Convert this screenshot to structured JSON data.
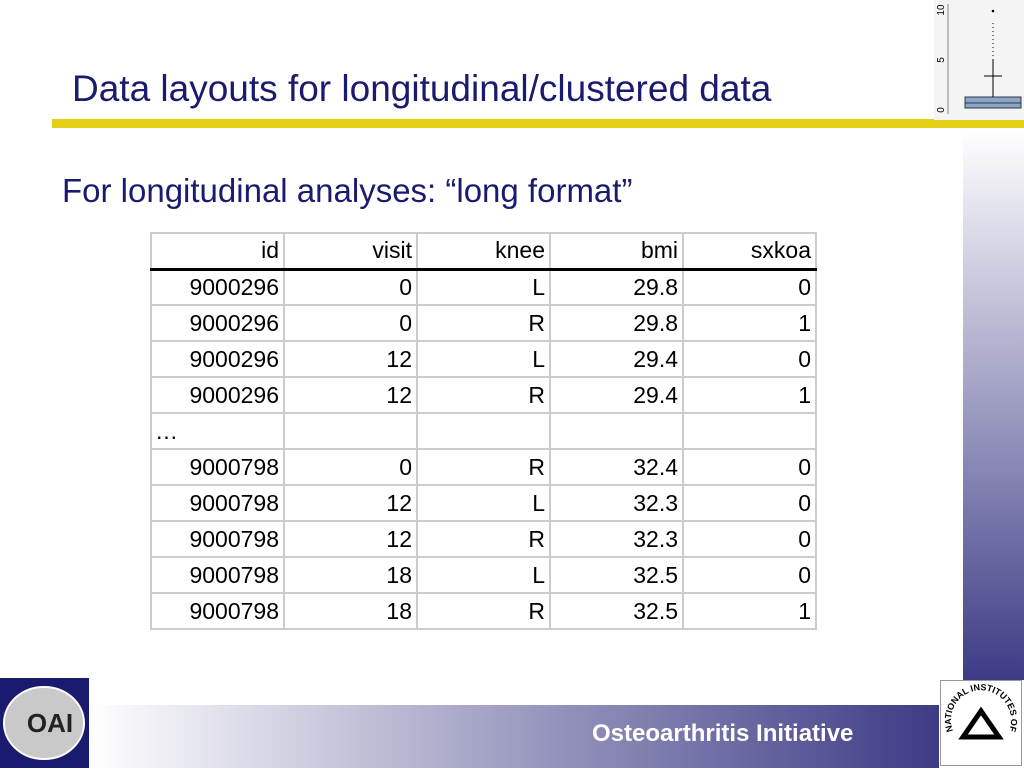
{
  "header": {
    "title": "Data layouts for longitudinal/clustered data"
  },
  "thumbnail": {
    "axis_ticks": [
      "0",
      "5",
      "10"
    ]
  },
  "subtitle": "For longitudinal analyses:  “long format”",
  "table": {
    "columns": [
      "id",
      "visit",
      "knee",
      "bmi",
      "sxkoa"
    ],
    "rows": [
      [
        "9000296",
        "0",
        "L",
        "29.8",
        "0"
      ],
      [
        "9000296",
        "0",
        "R",
        "29.8",
        "1"
      ],
      [
        "9000296",
        "12",
        "L",
        "29.4",
        "0"
      ],
      [
        "9000296",
        "12",
        "R",
        "29.4",
        "1"
      ],
      [
        "…"
      ],
      [
        "9000798",
        "0",
        "R",
        "32.4",
        "0"
      ],
      [
        "9000798",
        "12",
        "L",
        "32.3",
        "0"
      ],
      [
        "9000798",
        "12",
        "R",
        "32.3",
        "0"
      ],
      [
        "9000798",
        "18",
        "L",
        "32.5",
        "0"
      ],
      [
        "9000798",
        "18",
        "R",
        "32.5",
        "1"
      ]
    ]
  },
  "footer": {
    "text": "Osteoarthritis Initiative",
    "left_logo": "OAI",
    "right_logo": "NATIONAL INSTITUTES OF HEALTH"
  }
}
